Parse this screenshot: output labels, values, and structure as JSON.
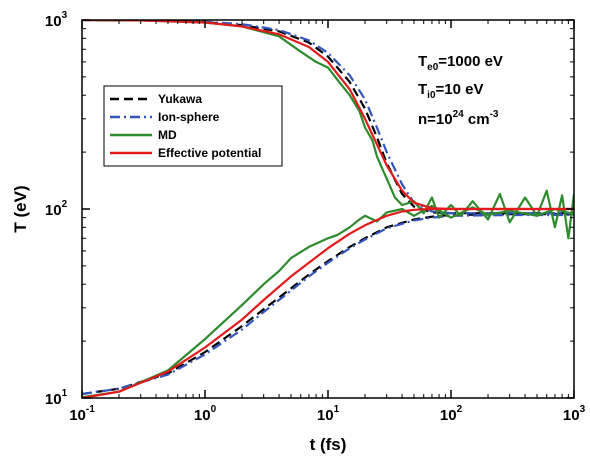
{
  "chart_data": {
    "type": "line",
    "title": "",
    "xlabel": "t (fs)",
    "ylabel": "T (eV)",
    "xscale": "log",
    "yscale": "log",
    "xlim": [
      0.1,
      1000
    ],
    "ylim": [
      10,
      1000
    ],
    "x_ticks": [
      {
        "base": "10",
        "exp": "-1",
        "value": 0.1
      },
      {
        "base": "10",
        "exp": "0",
        "value": 1
      },
      {
        "base": "10",
        "exp": "1",
        "value": 10
      },
      {
        "base": "10",
        "exp": "2",
        "value": 100
      },
      {
        "base": "10",
        "exp": "3",
        "value": 1000
      }
    ],
    "y_ticks": [
      {
        "base": "10",
        "exp": "1",
        "value": 10
      },
      {
        "base": "10",
        "exp": "2",
        "value": 100
      },
      {
        "base": "10",
        "exp": "3",
        "value": 1000
      }
    ],
    "grid": false,
    "legend_position": "upper-left",
    "annotations": {
      "te": {
        "main": "T",
        "sub": "e0",
        "rest": "=1000 eV"
      },
      "ti": {
        "main": "T",
        "sub": "i0",
        "rest": "=10 eV"
      },
      "n": {
        "main": "n=10",
        "sup": "24",
        "mid": " cm",
        "sup2": "-3"
      }
    },
    "series": [
      {
        "name": "Yukawa",
        "color": "#000000",
        "style": "dashed",
        "electron": {
          "x": [
            0.1,
            0.3,
            1,
            2,
            4,
            7,
            10,
            15,
            20,
            25,
            30,
            40,
            50,
            70,
            100,
            200,
            500,
            1000
          ],
          "y": [
            1000,
            995,
            975,
            940,
            870,
            760,
            640,
            470,
            340,
            240,
            175,
            120,
            103,
            96,
            95,
            95,
            95,
            95
          ]
        },
        "ion": {
          "x": [
            0.1,
            0.2,
            0.5,
            1,
            2,
            3,
            5,
            7,
            10,
            15,
            20,
            30,
            50,
            70,
            100,
            300,
            1000
          ],
          "y": [
            10.5,
            11.2,
            13.5,
            17.5,
            24,
            29.5,
            38,
            45,
            53,
            63,
            70,
            80,
            88,
            91,
            93,
            94,
            94
          ]
        }
      },
      {
        "name": "Ion-sphere",
        "color": "#3355bb",
        "style": "dash-dot",
        "electron": {
          "x": [
            0.1,
            0.3,
            1,
            2,
            4,
            7,
            10,
            15,
            20,
            25,
            30,
            40,
            50,
            70,
            100,
            200,
            500,
            1000
          ],
          "y": [
            1000,
            996,
            980,
            950,
            885,
            780,
            670,
            510,
            380,
            270,
            200,
            135,
            108,
            97,
            95,
            95,
            95,
            95
          ]
        },
        "ion": {
          "x": [
            0.1,
            0.2,
            0.5,
            1,
            2,
            3,
            5,
            7,
            10,
            15,
            20,
            30,
            50,
            70,
            100,
            300,
            1000
          ],
          "y": [
            10.5,
            11.2,
            13.3,
            17,
            23,
            28.5,
            37,
            44,
            52,
            62,
            69,
            79,
            87,
            90,
            92,
            93,
            93
          ]
        }
      },
      {
        "name": "MD",
        "color": "#2e8b2e",
        "style": "solid",
        "electron": {
          "x": [
            0.1,
            0.3,
            1,
            2,
            4,
            6,
            8,
            10,
            12,
            15,
            18,
            20,
            23,
            25,
            28,
            30,
            35,
            40,
            50,
            60,
            70,
            80,
            100,
            120,
            150,
            200,
            250,
            300,
            400,
            500,
            600,
            700,
            800,
            900,
            1000
          ],
          "y": [
            1000,
            995,
            970,
            925,
            820,
            680,
            600,
            560,
            480,
            400,
            330,
            270,
            230,
            190,
            160,
            145,
            115,
            105,
            110,
            95,
            115,
            90,
            105,
            92,
            110,
            88,
            120,
            85,
            115,
            92,
            125,
            80,
            118,
            70,
            120
          ]
        },
        "ion": {
          "x": [
            0.1,
            0.2,
            0.5,
            1,
            2,
            3,
            4,
            5,
            7,
            10,
            12,
            15,
            18,
            20,
            25,
            30,
            40,
            50,
            70,
            100,
            150,
            200,
            300,
            500,
            700,
            1000
          ],
          "y": [
            10.1,
            10.8,
            14,
            20.5,
            31,
            40,
            47,
            55,
            63,
            70,
            73,
            80,
            88,
            92,
            86,
            96,
            100,
            92,
            104,
            90,
            102,
            93,
            98,
            92,
            100,
            94
          ]
        }
      },
      {
        "name": "Effective potential",
        "color": "#e31a1c",
        "style": "solid",
        "electron": {
          "x": [
            0.1,
            0.3,
            1,
            2,
            4,
            7,
            10,
            15,
            20,
            25,
            30,
            40,
            50,
            70,
            100,
            200,
            500,
            1000
          ],
          "y": [
            1000,
            995,
            970,
            925,
            840,
            720,
            600,
            430,
            300,
            220,
            170,
            125,
            108,
            101,
            100,
            100,
            100,
            100
          ]
        },
        "ion": {
          "x": [
            0.1,
            0.2,
            0.5,
            1,
            2,
            3,
            5,
            7,
            10,
            15,
            20,
            30,
            40,
            50,
            70,
            100,
            300,
            1000
          ],
          "y": [
            10,
            10.8,
            13.8,
            18.5,
            26,
            33,
            44,
            52,
            62,
            74,
            82,
            92,
            97,
            99,
            100,
            100,
            100,
            100
          ]
        }
      }
    ]
  }
}
